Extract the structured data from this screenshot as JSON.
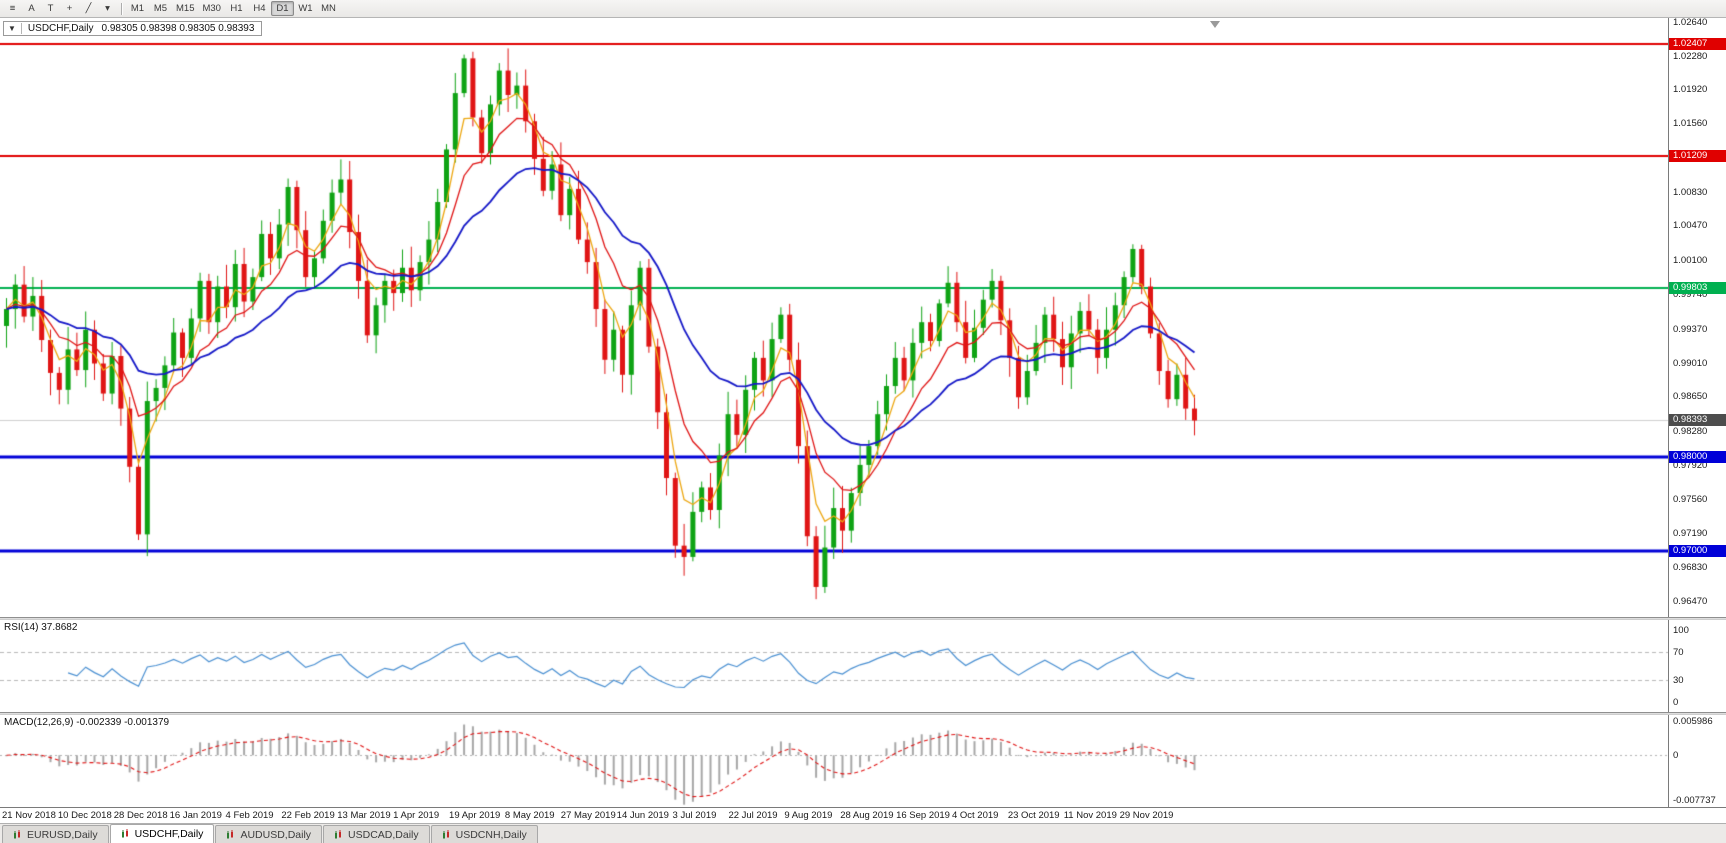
{
  "toolbar": {
    "tools": [
      {
        "name": "chart-list-icon",
        "glyph": "≡"
      },
      {
        "name": "cursor-tool-icon",
        "glyph": "A"
      },
      {
        "name": "text-tool-icon",
        "glyph": "T"
      },
      {
        "name": "crosshair-tool-icon",
        "glyph": "+"
      },
      {
        "name": "trendline-tool-icon",
        "glyph": "╱"
      },
      {
        "name": "tools-dropdown-icon",
        "glyph": "▾"
      }
    ],
    "timeframes": [
      {
        "label": "M1"
      },
      {
        "label": "M5"
      },
      {
        "label": "M15"
      },
      {
        "label": "M30"
      },
      {
        "label": "H1"
      },
      {
        "label": "H4"
      },
      {
        "label": "D1",
        "active": true
      },
      {
        "label": "W1"
      },
      {
        "label": "MN"
      }
    ]
  },
  "chart": {
    "collapse_icon": "▼",
    "title": "USDCHF,Daily",
    "ohlc": "0.98305 0.98398 0.98305 0.98393"
  },
  "indicators": {
    "rsi_label": "RSI(14) 37.8682",
    "macd_label": "MACD(12,26,9) -0.002339 -0.001379"
  },
  "colors": {
    "bull": "#0fa314",
    "bear": "#e01515",
    "current_line": "#cfcfcf"
  },
  "chart_data": {
    "type": "candlestick",
    "symbol": "USDCHF",
    "period": "Daily",
    "title": "USDCHF,Daily",
    "ylim": [
      0.963,
      1.0268
    ],
    "first_open": 0.994,
    "closes": [
      0.9958,
      0.9984,
      0.995,
      0.9972,
      0.9925,
      0.989,
      0.9872,
      0.9915,
      0.9893,
      0.9936,
      0.99,
      0.9868,
      0.9908,
      0.9852,
      0.979,
      0.9718,
      0.986,
      0.9874,
      0.9898,
      0.9933,
      0.9906,
      0.9948,
      0.9988,
      0.9944,
      0.9982,
      0.996,
      1.0006,
      0.9966,
      0.9992,
      1.0038,
      1.0012,
      1.0048,
      1.0088,
      1.0042,
      0.9992,
      1.0012,
      1.0052,
      1.0082,
      1.0096,
      1.004,
      0.9988,
      0.993,
      0.9962,
      0.9988,
      0.9975,
      1.0002,
      0.9978,
      1.0008,
      1.0032,
      1.0072,
      1.0128,
      1.0188,
      1.0225,
      1.0162,
      1.0124,
      1.0176,
      1.0212,
      1.0186,
      1.0196,
      1.0158,
      1.0118,
      1.0084,
      1.0112,
      1.0058,
      1.0086,
      1.0032,
      1.0008,
      0.9958,
      0.9904,
      0.9936,
      0.9888,
      0.9962,
      1.0002,
      0.9918,
      0.9848,
      0.9778,
      0.9706,
      0.9694,
      0.9742,
      0.9768,
      0.9744,
      0.9802,
      0.9846,
      0.9824,
      0.9872,
      0.9906,
      0.9882,
      0.9926,
      0.9952,
      0.9904,
      0.9812,
      0.9716,
      0.9662,
      0.9704,
      0.9746,
      0.9722,
      0.9762,
      0.9792,
      0.9812,
      0.9846,
      0.9876,
      0.9906,
      0.9882,
      0.9922,
      0.9944,
      0.9924,
      0.9964,
      0.9986,
      0.9944,
      0.9906,
      0.9938,
      0.9968,
      0.9988,
      0.9946,
      0.9906,
      0.9864,
      0.9892,
      0.9922,
      0.9952,
      0.9926,
      0.9896,
      0.9932,
      0.9956,
      0.9936,
      0.9906,
      0.9936,
      0.9962,
      0.9992,
      1.0022,
      0.9982,
      0.9932,
      0.9892,
      0.9862,
      0.9888,
      0.9852,
      0.98393
    ],
    "wick_overrides": {
      "15": {
        "low": 0.9712
      },
      "52": {
        "high": 1.0229
      },
      "72": {
        "high": 1.0009
      },
      "92": {
        "low": 0.9649
      },
      "128": {
        "high": 1.0027
      }
    },
    "overlays": [
      {
        "name": "ma-fast",
        "period": 4,
        "color": "#eda711"
      },
      {
        "name": "ma-mid",
        "period": 9,
        "color": "#e01515"
      },
      {
        "name": "ma-slow",
        "period": 22,
        "color": "#1518c8"
      }
    ],
    "levels": [
      {
        "value": 1.02407,
        "label": "1.02407",
        "color": "#e00000",
        "width": 2
      },
      {
        "value": 1.01209,
        "label": "1.01209",
        "color": "#e00000",
        "width": 2
      },
      {
        "value": 0.99803,
        "label": "0.99803",
        "color": "#00b050",
        "width": 2
      },
      {
        "value": 0.98,
        "label": "0.98000",
        "color": "#0000d8",
        "width": 3
      },
      {
        "value": 0.97,
        "label": "0.97000",
        "color": "#0000d8",
        "width": 3
      }
    ],
    "current": {
      "value": 0.98393,
      "label": "0.98393",
      "chip": "#4d4d4d"
    },
    "price_ticks": [
      {
        "v": 1.0264,
        "t": "1.02640"
      },
      {
        "v": 1.0228,
        "t": "1.02280"
      },
      {
        "v": 1.0192,
        "t": "1.01920"
      },
      {
        "v": 1.0156,
        "t": "1.01560"
      },
      {
        "v": 1.0083,
        "t": "1.00830"
      },
      {
        "v": 1.0047,
        "t": "1.00470"
      },
      {
        "v": 1.001,
        "t": "1.00100"
      },
      {
        "v": 0.9974,
        "t": "0.99740"
      },
      {
        "v": 0.9937,
        "t": "0.99370"
      },
      {
        "v": 0.9901,
        "t": "0.99010"
      },
      {
        "v": 0.9865,
        "t": "0.98650"
      },
      {
        "v": 0.9828,
        "t": "0.98280"
      },
      {
        "v": 0.9792,
        "t": "0.97920"
      },
      {
        "v": 0.9756,
        "t": "0.97560"
      },
      {
        "v": 0.9719,
        "t": "0.97190"
      },
      {
        "v": 0.9683,
        "t": "0.96830"
      },
      {
        "v": 0.9647,
        "t": "0.96470"
      }
    ],
    "x_labels": [
      "21 Nov 2018",
      "10 Dec 2018",
      "28 Dec 2018",
      "16 Jan 2019",
      "4 Feb 2019",
      "22 Feb 2019",
      "13 Mar 2019",
      "1 Apr 2019",
      "19 Apr 2019",
      "8 May 2019",
      "27 May 2019",
      "14 Jun 2019",
      "3 Jul 2019",
      "22 Jul 2019",
      "9 Aug 2019",
      "28 Aug 2019",
      "16 Sep 2019",
      "4 Oct 2019",
      "23 Oct 2019",
      "11 Nov 2019",
      "29 Nov 2019"
    ],
    "rsi": {
      "display_period": 14,
      "calc_period": 7,
      "current_value": 37.8682,
      "color": "#4a90d2",
      "range": [
        -14,
        114
      ],
      "levels": [
        70,
        30
      ],
      "ticks": [
        {
          "v": 100,
          "t": "100"
        },
        {
          "v": 70,
          "t": "70"
        },
        {
          "v": 30,
          "t": "30"
        },
        {
          "v": 0,
          "t": "0"
        }
      ]
    },
    "macd": {
      "display_params": "12,26,9",
      "calc": {
        "fast": 6,
        "slow": 13,
        "signal": 5
      },
      "main_value": -0.002339,
      "signal_value": -0.001379,
      "hist_color": "#a8a8a8",
      "signal_color": "#e01515",
      "range": [
        -0.009,
        0.007
      ],
      "ticks": [
        {
          "v": 0.005986,
          "t": "0.005986"
        },
        {
          "v": 0,
          "t": "0"
        },
        {
          "v": -0.007737,
          "t": "-0.007737"
        }
      ]
    }
  },
  "tabs": [
    {
      "label": "EURUSD,Daily"
    },
    {
      "label": "USDCHF,Daily",
      "active": true
    },
    {
      "label": "AUDUSD,Daily"
    },
    {
      "label": "USDCAD,Daily"
    },
    {
      "label": "USDCNH,Daily"
    }
  ]
}
